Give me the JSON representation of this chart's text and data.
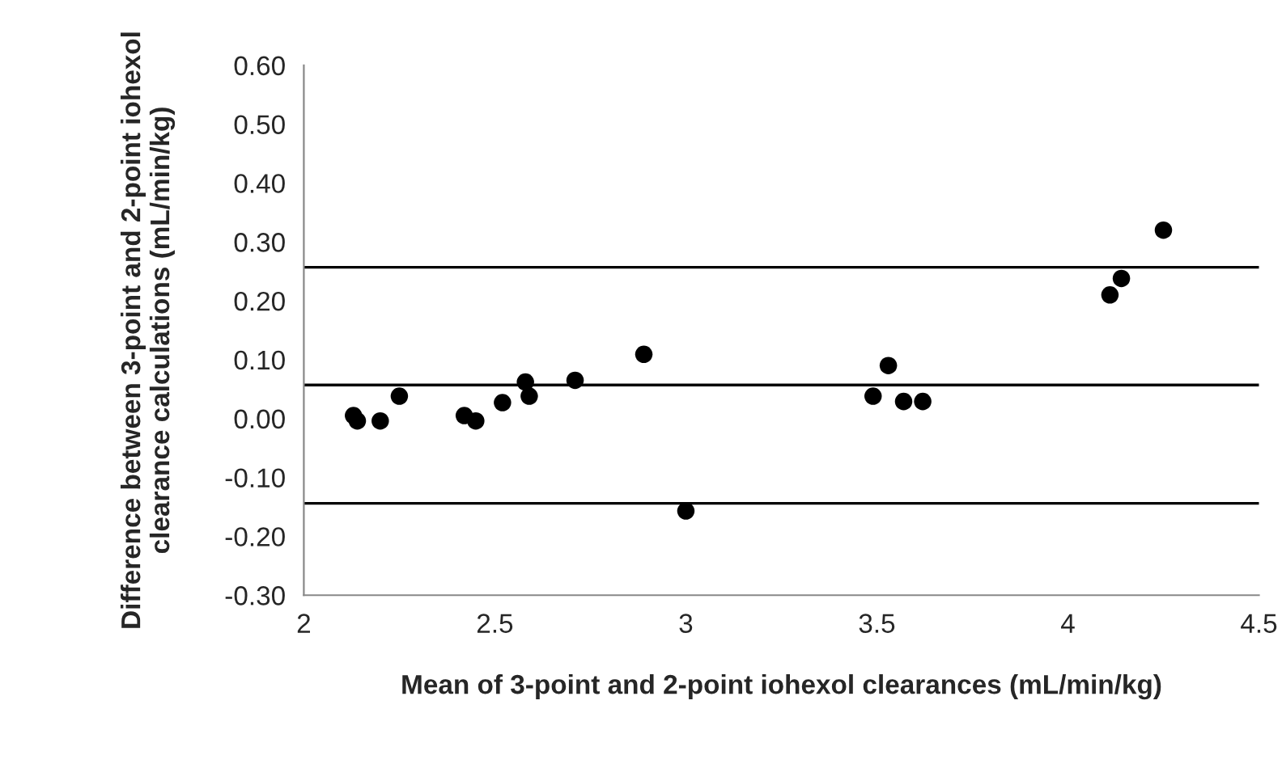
{
  "chart_data": {
    "type": "scatter",
    "xlabel": "Mean of 3-point and 2-point iohexol clearances (mL/min/kg)",
    "ylabel": "Difference between 3-point and 2-point iohexol clearance calculations (mL/min/kg)",
    "x": [
      2.13,
      2.14,
      2.2,
      2.25,
      2.42,
      2.45,
      2.52,
      2.58,
      2.59,
      2.71,
      2.89,
      3.0,
      3.49,
      3.53,
      3.57,
      3.62,
      4.11,
      4.14,
      4.25
    ],
    "series": [
      {
        "color": "#000000",
        "values": [
          0.005,
          -0.004,
          -0.004,
          0.038,
          0.005,
          -0.004,
          0.027,
          0.062,
          0.038,
          0.065,
          0.109,
          -0.157,
          0.038,
          0.09,
          0.029,
          0.029,
          0.21,
          0.238,
          0.32
        ]
      }
    ],
    "marker": "circle",
    "xlim": [
      2,
      4.5
    ],
    "xticks": [
      2,
      2.5,
      3,
      3.5,
      4,
      4.5
    ],
    "ylim": [
      -0.3,
      0.6
    ],
    "yticks": [
      {
        "value": -0.3,
        "label": "-0.30"
      },
      {
        "value": -0.2,
        "label": "-0.20"
      },
      {
        "value": -0.1,
        "label": "-0.10"
      },
      {
        "value": 0,
        "label": "0.00"
      },
      {
        "value": 0.1,
        "label": "0.10"
      },
      {
        "value": 0.2,
        "label": "0.20"
      },
      {
        "value": 0.3,
        "label": "0.30"
      },
      {
        "value": 0.4,
        "label": "0.40"
      },
      {
        "value": 0.5,
        "label": "0.50"
      },
      {
        "value": 0.6,
        "label": "0.60"
      }
    ],
    "ref_lines": [
      {
        "axis": "y",
        "value": 0.257,
        "color": "#000000"
      },
      {
        "axis": "y",
        "value": 0.057,
        "color": "#000000"
      },
      {
        "axis": "y",
        "value": -0.144,
        "color": "#000000"
      }
    ],
    "grid": false,
    "legend": false
  }
}
